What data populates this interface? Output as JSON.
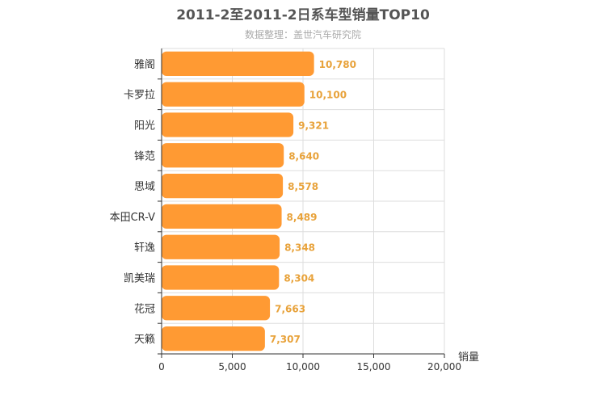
{
  "chart_data": {
    "type": "bar",
    "orientation": "horizontal",
    "title": "2011-2至2011-2日系车型销量TOP10",
    "subtitle": "数据整理：盖世汽车研究院",
    "categories": [
      "雅阁",
      "卡罗拉",
      "阳光",
      "锋范",
      "思域",
      "本田CR-V",
      "轩逸",
      "凯美瑞",
      "花冠",
      "天籁"
    ],
    "values": [
      10780,
      10100,
      9321,
      8640,
      8578,
      8489,
      8348,
      8304,
      7663,
      7307
    ],
    "value_labels": [
      "10,780",
      "10,100",
      "9,321",
      "8,640",
      "8,578",
      "8,489",
      "8,348",
      "8,304",
      "7,663",
      "7,307"
    ],
    "xlabel": "销量",
    "ylabel": "",
    "xlim": [
      0,
      20000
    ],
    "x_ticks": [
      0,
      5000,
      10000,
      15000,
      20000
    ],
    "x_tick_labels": [
      "0",
      "5,000",
      "10,000",
      "15,000",
      "20,000"
    ],
    "grid": true,
    "legend": "none",
    "bar_color": "#ff9a33",
    "value_label_color": "#e8a23a"
  }
}
